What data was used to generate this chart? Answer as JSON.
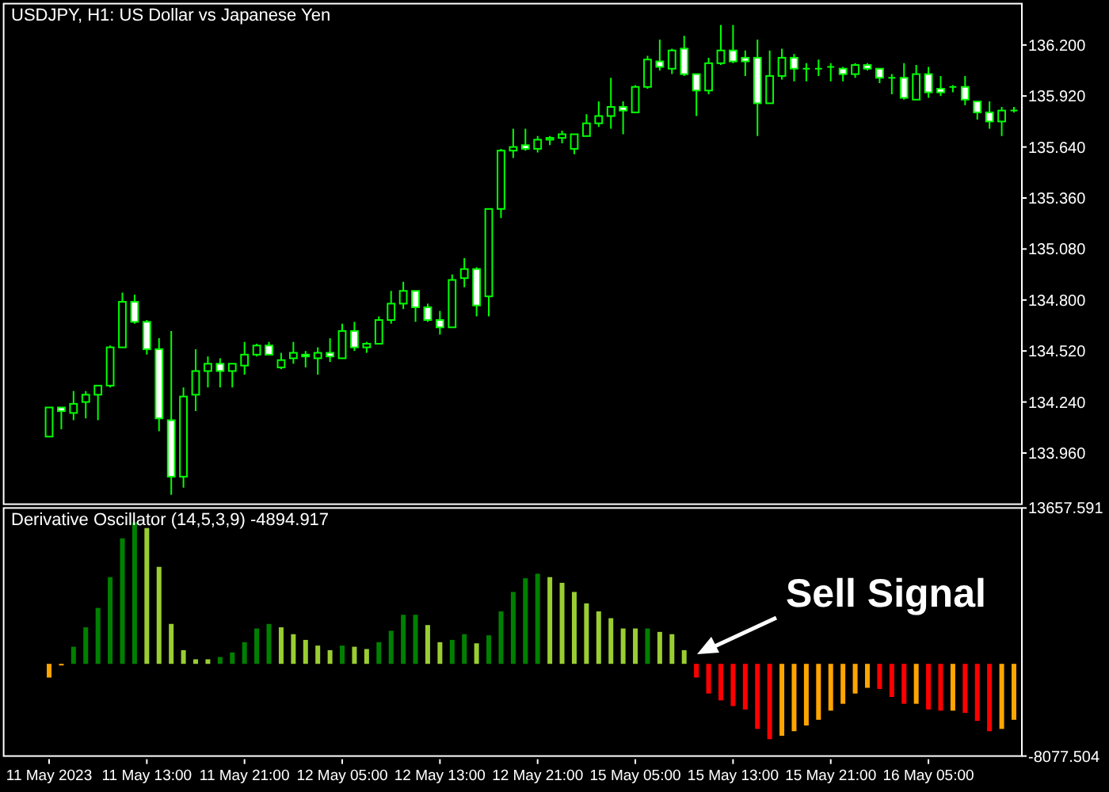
{
  "chart_data": [
    {
      "type": "candlestick",
      "title": "USDJPY, H1:  US Dollar vs Japanese Yen",
      "color": "#00ff00",
      "tick_labels": "y",
      "categories": [
        null,
        null,
        null,
        null,
        null,
        null,
        null,
        null,
        null,
        null,
        null,
        null,
        null,
        null,
        null,
        null,
        null,
        null,
        null,
        null,
        null,
        null,
        null,
        null,
        null,
        null,
        null,
        null,
        null,
        null,
        null,
        null,
        null,
        null,
        null,
        null,
        null,
        null,
        null,
        null,
        null,
        null,
        null,
        null,
        null,
        null,
        null,
        null,
        null,
        null,
        null,
        null,
        null,
        null,
        null,
        null,
        null,
        null,
        null,
        null,
        null,
        null,
        null,
        null,
        null,
        null,
        null,
        null,
        null,
        null,
        null,
        null,
        null,
        null,
        null,
        null,
        null,
        null,
        null,
        null
      ],
      "ylim": [
        133.679,
        136.427
      ],
      "yticks": [
        {
          "value": 133.96,
          "label": "133.960"
        },
        {
          "value": 134.24,
          "label": "134.240"
        },
        {
          "value": 134.52,
          "label": "134.520"
        },
        {
          "value": 134.8,
          "label": "134.800"
        },
        {
          "value": 135.08,
          "label": "135.080"
        },
        {
          "value": 135.36,
          "label": "135.360"
        },
        {
          "value": 135.64,
          "label": "135.640"
        },
        {
          "value": 135.92,
          "label": "135.920"
        },
        {
          "value": 136.2,
          "label": "136.200"
        }
      ],
      "ohlc": [
        [
          134.05,
          134.21,
          134.05,
          134.21
        ],
        [
          134.21,
          134.21,
          134.09,
          134.19
        ],
        [
          134.18,
          134.3,
          134.14,
          134.23
        ],
        [
          134.24,
          134.3,
          134.15,
          134.28
        ],
        [
          134.28,
          134.33,
          134.14,
          134.33
        ],
        [
          134.33,
          134.55,
          134.32,
          134.54
        ],
        [
          134.54,
          134.84,
          134.54,
          134.79
        ],
        [
          134.79,
          134.83,
          134.67,
          134.68
        ],
        [
          134.68,
          134.69,
          134.5,
          134.53
        ],
        [
          134.53,
          134.59,
          134.08,
          134.15
        ],
        [
          134.14,
          134.63,
          133.73,
          133.83
        ],
        [
          133.83,
          134.32,
          133.77,
          134.27
        ],
        [
          134.28,
          134.53,
          134.19,
          134.41
        ],
        [
          134.41,
          134.49,
          134.32,
          134.45
        ],
        [
          134.45,
          134.48,
          134.32,
          134.41
        ],
        [
          134.41,
          134.45,
          134.32,
          134.45
        ],
        [
          134.44,
          134.57,
          134.39,
          134.5
        ],
        [
          134.5,
          134.56,
          134.49,
          134.55
        ],
        [
          134.55,
          134.57,
          134.5,
          134.5
        ],
        [
          134.43,
          134.51,
          134.42,
          134.47
        ],
        [
          134.48,
          134.57,
          134.45,
          134.51
        ],
        [
          134.5,
          134.52,
          134.43,
          134.49
        ],
        [
          134.48,
          134.54,
          134.39,
          134.51
        ],
        [
          134.51,
          134.59,
          134.46,
          134.49
        ],
        [
          134.48,
          134.67,
          134.48,
          134.63
        ],
        [
          134.63,
          134.68,
          134.52,
          134.54
        ],
        [
          134.54,
          134.57,
          134.51,
          134.56
        ],
        [
          134.56,
          134.71,
          134.56,
          134.69
        ],
        [
          134.69,
          134.85,
          134.67,
          134.78
        ],
        [
          134.78,
          134.9,
          134.75,
          134.85
        ],
        [
          134.85,
          134.85,
          134.68,
          134.76
        ],
        [
          134.76,
          134.78,
          134.68,
          134.69
        ],
        [
          134.69,
          134.74,
          134.61,
          134.65
        ],
        [
          134.65,
          134.94,
          134.65,
          134.91
        ],
        [
          134.92,
          135.03,
          134.87,
          134.97
        ],
        [
          134.97,
          134.98,
          134.71,
          134.77
        ],
        [
          134.82,
          135.3,
          134.71,
          135.3
        ],
        [
          135.3,
          135.63,
          135.25,
          135.62
        ],
        [
          135.62,
          135.74,
          135.58,
          135.64
        ],
        [
          135.65,
          135.74,
          135.62,
          135.63
        ],
        [
          135.63,
          135.7,
          135.61,
          135.68
        ],
        [
          135.68,
          135.7,
          135.65,
          135.69
        ],
        [
          135.69,
          135.73,
          135.66,
          135.71
        ],
        [
          135.63,
          135.71,
          135.6,
          135.71
        ],
        [
          135.7,
          135.82,
          135.7,
          135.77
        ],
        [
          135.77,
          135.89,
          135.75,
          135.81
        ],
        [
          135.81,
          136.02,
          135.74,
          135.86
        ],
        [
          135.86,
          135.89,
          135.71,
          135.84
        ],
        [
          135.83,
          135.98,
          135.83,
          135.97
        ],
        [
          135.97,
          136.14,
          135.96,
          136.12
        ],
        [
          136.11,
          136.23,
          136.06,
          136.08
        ],
        [
          136.07,
          136.18,
          136.04,
          136.17
        ],
        [
          136.18,
          136.25,
          136.03,
          136.04
        ],
        [
          136.04,
          136.04,
          135.81,
          135.95
        ],
        [
          135.95,
          136.13,
          135.93,
          136.1
        ],
        [
          136.1,
          136.31,
          136.09,
          136.17
        ],
        [
          136.17,
          136.31,
          136.1,
          136.11
        ],
        [
          136.13,
          136.17,
          136.03,
          136.11
        ],
        [
          136.13,
          136.23,
          135.7,
          135.88
        ],
        [
          135.88,
          136.17,
          135.88,
          136.03
        ],
        [
          136.03,
          136.18,
          136.01,
          136.13
        ],
        [
          136.13,
          136.15,
          136.0,
          136.07
        ],
        [
          136.07,
          136.1,
          136.0,
          136.07
        ],
        [
          136.07,
          136.12,
          136.03,
          136.07
        ],
        [
          136.08,
          136.1,
          136.0,
          136.08
        ],
        [
          136.07,
          136.08,
          136.0,
          136.04
        ],
        [
          136.04,
          136.1,
          136.02,
          136.09
        ],
        [
          136.09,
          136.1,
          136.06,
          136.07
        ],
        [
          136.07,
          136.07,
          135.99,
          136.02
        ],
        [
          136.02,
          136.04,
          135.93,
          136.02
        ],
        [
          136.02,
          136.1,
          135.9,
          135.91
        ],
        [
          135.9,
          136.09,
          135.9,
          136.04
        ],
        [
          136.04,
          136.08,
          135.91,
          135.94
        ],
        [
          135.96,
          136.03,
          135.92,
          135.94
        ],
        [
          135.97,
          135.98,
          135.94,
          135.97
        ],
        [
          135.97,
          136.03,
          135.87,
          135.9
        ],
        [
          135.89,
          135.89,
          135.79,
          135.83
        ],
        [
          135.83,
          135.89,
          135.74,
          135.78
        ],
        [
          135.78,
          135.86,
          135.7,
          135.84
        ],
        [
          135.84,
          135.86,
          135.83,
          135.84
        ]
      ]
    },
    {
      "type": "bar",
      "title": "Derivative Oscillator (14,5,3,9) -4894.917",
      "categories": [
        "11 May 2023",
        null,
        null,
        null,
        null,
        null,
        null,
        null,
        "11 May 13:00",
        null,
        null,
        null,
        null,
        null,
        null,
        null,
        "11 May 21:00",
        null,
        null,
        null,
        null,
        null,
        null,
        null,
        "12 May 05:00",
        null,
        null,
        null,
        null,
        null,
        null,
        null,
        "12 May 13:00",
        null,
        null,
        null,
        null,
        null,
        null,
        null,
        "12 May 21:00",
        null,
        null,
        null,
        null,
        null,
        null,
        null,
        "15 May 05:00",
        null,
        null,
        null,
        null,
        null,
        null,
        null,
        "15 May 13:00",
        null,
        null,
        null,
        null,
        null,
        null,
        null,
        "15 May 21:00",
        null,
        null,
        null,
        null,
        null,
        null,
        null,
        "16 May 05:00",
        null,
        null,
        null,
        null,
        null,
        null,
        null
      ],
      "values": [
        -1200,
        -100,
        1500,
        3200,
        4900,
        7600,
        11000,
        12400,
        11900,
        8500,
        3500,
        1200,
        400,
        400,
        600,
        1000,
        1900,
        3100,
        3500,
        3200,
        2600,
        2100,
        1600,
        1200,
        1600,
        1500,
        1300,
        1900,
        2900,
        4300,
        4300,
        3400,
        1900,
        2100,
        2600,
        1800,
        2500,
        4600,
        6300,
        7500,
        7900,
        7600,
        7100,
        6300,
        5300,
        4600,
        4000,
        3100,
        3100,
        3100,
        2800,
        2600,
        1200,
        -1200,
        -2600,
        -3200,
        -3700,
        -4000,
        -5700,
        -6600,
        -6300,
        -5900,
        -5400,
        -4900,
        -4100,
        -3500,
        -2600,
        -2100,
        -2200,
        -2900,
        -3500,
        -3500,
        -4000,
        -4100,
        -4100,
        -4300,
        -5000,
        -5900,
        -5700,
        -4900
      ],
      "colors": [
        "#ffa500",
        "#ffa500",
        "#008000",
        "#008000",
        "#008000",
        "#008000",
        "#008000",
        "#008000",
        "#9acd32",
        "#9acd32",
        "#9acd32",
        "#9acd32",
        "#9acd32",
        "#9acd32",
        "#008000",
        "#008000",
        "#008000",
        "#008000",
        "#008000",
        "#9acd32",
        "#9acd32",
        "#9acd32",
        "#9acd32",
        "#9acd32",
        "#008000",
        "#9acd32",
        "#9acd32",
        "#008000",
        "#008000",
        "#008000",
        "#008000",
        "#9acd32",
        "#9acd32",
        "#008000",
        "#008000",
        "#9acd32",
        "#008000",
        "#008000",
        "#008000",
        "#008000",
        "#008000",
        "#9acd32",
        "#9acd32",
        "#9acd32",
        "#9acd32",
        "#9acd32",
        "#9acd32",
        "#9acd32",
        "#9acd32",
        "#008000",
        "#9acd32",
        "#9acd32",
        "#9acd32",
        "#ff0000",
        "#ff0000",
        "#ff0000",
        "#ff0000",
        "#ff0000",
        "#ff0000",
        "#ff0000",
        "#ffa500",
        "#ffa500",
        "#ffa500",
        "#ffa500",
        "#ffa500",
        "#ffa500",
        "#ffa500",
        "#ffa500",
        "#ff0000",
        "#ff0000",
        "#ff0000",
        "#ffa500",
        "#ff0000",
        "#ff0000",
        "#ffa500",
        "#ff0000",
        "#ff0000",
        "#ff0000",
        "#ffa500",
        "#ffa500"
      ],
      "ylim": [
        -8077.504,
        13657.591
      ],
      "yticks": [
        13657.591,
        -8077.504
      ],
      "annotations": [
        "Sell Signal"
      ]
    }
  ]
}
